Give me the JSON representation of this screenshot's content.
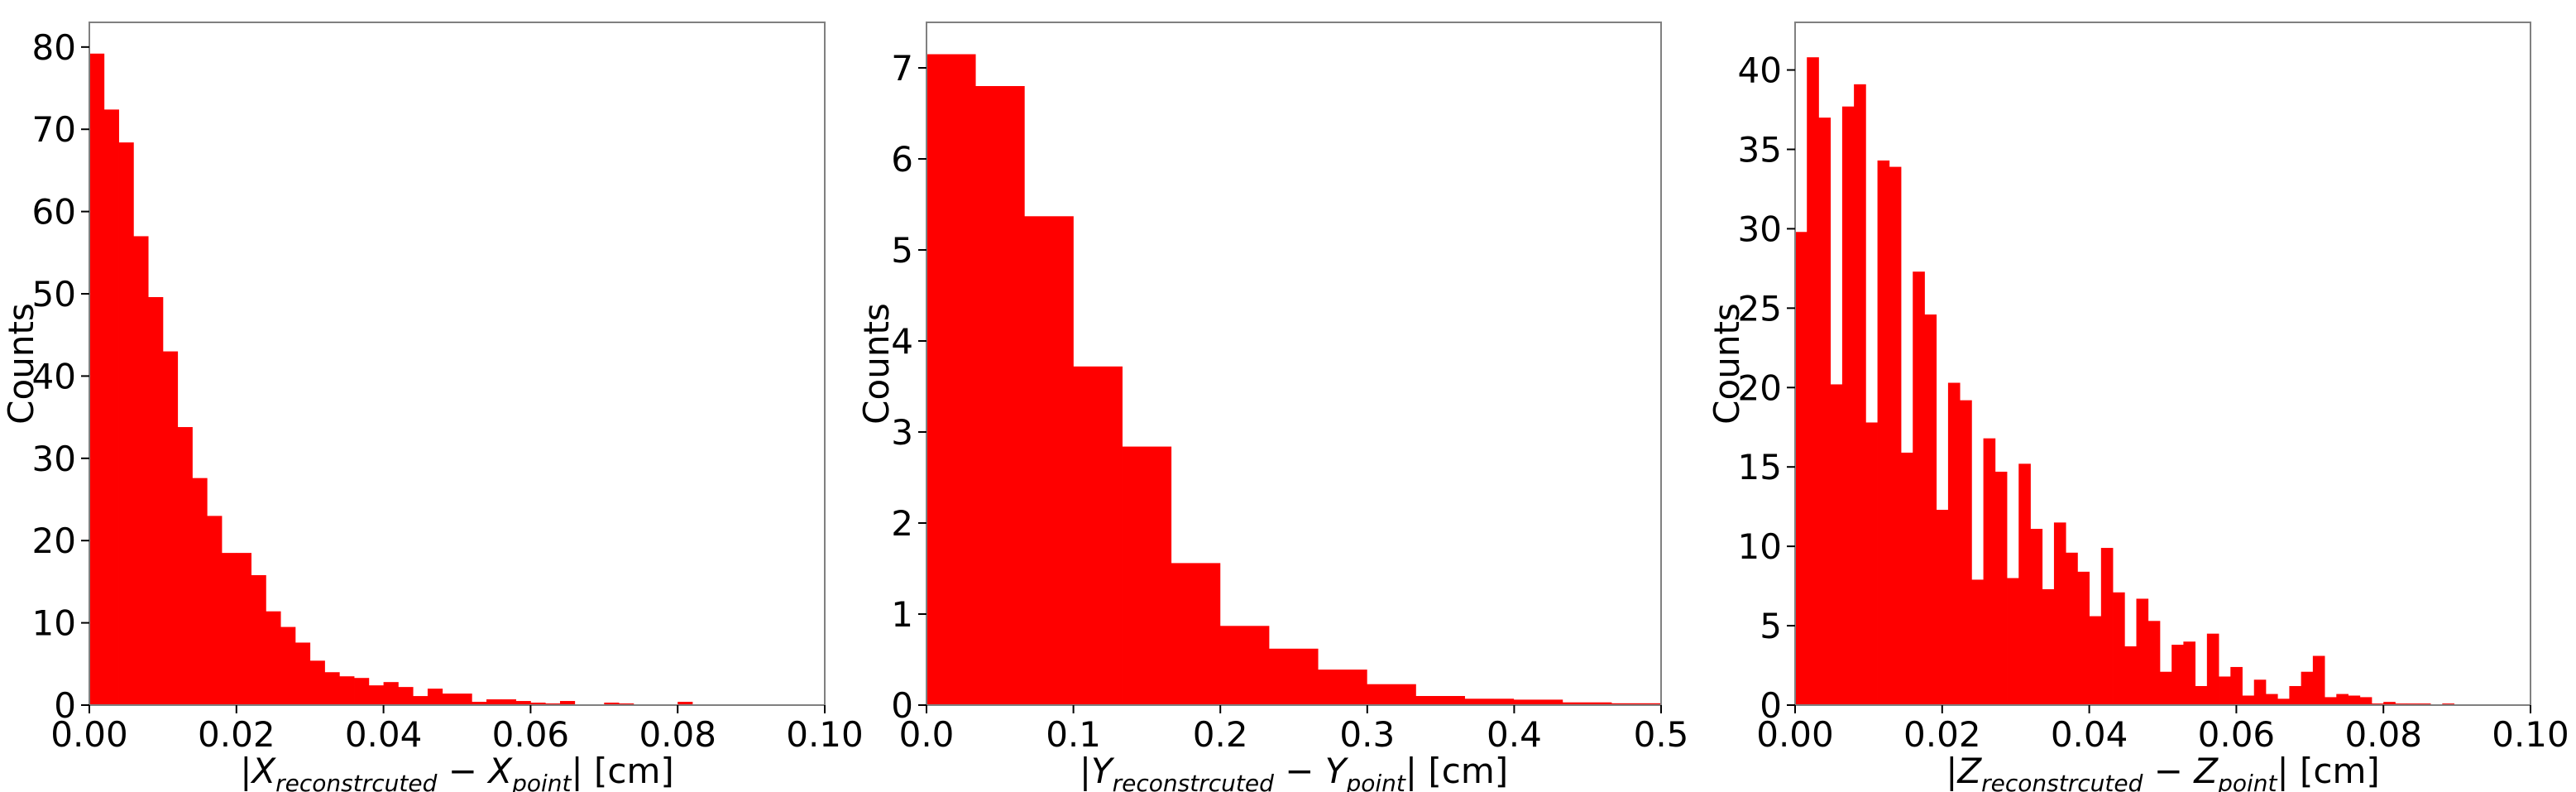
{
  "figure": {
    "bar_color": "#ff0000",
    "axes_color": "#000000",
    "spine_color": "#808080"
  },
  "chart_data": [
    {
      "type": "bar",
      "title": "",
      "ylabel": "Counts",
      "xlabel": {
        "prefix": "|",
        "var1": "X",
        "sub1": "reconstrcuted",
        "minus": " − ",
        "var2": "X",
        "sub2": "point",
        "suffix": "| [cm]"
      },
      "xlim": [
        0,
        0.1
      ],
      "ylim": [
        0,
        83
      ],
      "xticks": [
        "0.00",
        "0.02",
        "0.04",
        "0.06",
        "0.08",
        "0.10"
      ],
      "xtick_values": [
        0,
        0.02,
        0.04,
        0.06,
        0.08,
        0.1
      ],
      "yticks": [
        "0",
        "10",
        "20",
        "30",
        "40",
        "50",
        "60",
        "70",
        "80"
      ],
      "ytick_values": [
        0,
        10,
        20,
        30,
        40,
        50,
        60,
        70,
        80
      ],
      "bin_start": 0,
      "bin_width": 0.002,
      "values": [
        79.2,
        72.4,
        68.4,
        57.0,
        49.6,
        43.0,
        33.8,
        27.6,
        23.0,
        18.5,
        18.5,
        15.8,
        11.4,
        9.5,
        7.6,
        5.4,
        4.0,
        3.5,
        3.3,
        2.4,
        2.8,
        2.2,
        1.1,
        2.0,
        1.4,
        1.4,
        0.4,
        0.7,
        0.7,
        0.5,
        0.3,
        0.2,
        0.5,
        0.1,
        0.1,
        0.3,
        0.2,
        0.1,
        0,
        0,
        0.4,
        0.1,
        0.1,
        0.1,
        0.1,
        0,
        0,
        0.1,
        0,
        0
      ]
    },
    {
      "type": "bar",
      "title": "",
      "ylabel": "Counts",
      "xlabel": {
        "prefix": "|",
        "var1": "Y",
        "sub1": "reconstrcuted",
        "minus": " − ",
        "var2": "Y",
        "sub2": "point",
        "suffix": "| [cm]"
      },
      "xlim": [
        0,
        0.5
      ],
      "ylim": [
        0,
        7.5
      ],
      "xticks": [
        "0.0",
        "0.1",
        "0.2",
        "0.3",
        "0.4",
        "0.5"
      ],
      "xtick_values": [
        0,
        0.1,
        0.2,
        0.3,
        0.4,
        0.5
      ],
      "yticks": [
        "0",
        "1",
        "2",
        "3",
        "4",
        "5",
        "6",
        "7"
      ],
      "ytick_values": [
        0,
        1,
        2,
        3,
        4,
        5,
        6,
        7
      ],
      "bin_start": 0,
      "bin_width": 0.0333,
      "values": [
        7.15,
        6.8,
        5.37,
        3.72,
        2.84,
        1.56,
        0.87,
        0.62,
        0.39,
        0.23,
        0.1,
        0.07,
        0.06,
        0.03,
        0.02
      ]
    },
    {
      "type": "bar",
      "title": "",
      "ylabel": "Counts",
      "xlabel": {
        "prefix": "|",
        "var1": "Z",
        "sub1": "reconstrcuted",
        "minus": " − ",
        "var2": "Z",
        "sub2": "point",
        "suffix": "| [cm]"
      },
      "xlim": [
        0,
        0.1
      ],
      "ylim": [
        0,
        43
      ],
      "xticks": [
        "0.00",
        "0.02",
        "0.04",
        "0.06",
        "0.08",
        "0.10"
      ],
      "xtick_values": [
        0,
        0.02,
        0.04,
        0.06,
        0.08,
        0.1
      ],
      "yticks": [
        "0",
        "5",
        "10",
        "15",
        "20",
        "25",
        "30",
        "35",
        "40"
      ],
      "ytick_values": [
        0,
        5,
        10,
        15,
        20,
        25,
        30,
        35,
        40
      ],
      "bin_start": 0,
      "bin_width": 0.0016,
      "values": [
        29.8,
        40.8,
        37.0,
        20.2,
        37.7,
        39.1,
        17.8,
        34.3,
        33.9,
        15.9,
        27.3,
        24.6,
        12.3,
        20.3,
        19.2,
        7.9,
        16.8,
        14.7,
        8.0,
        15.2,
        11.1,
        7.3,
        11.5,
        9.6,
        8.4,
        5.6,
        9.9,
        7.1,
        3.7,
        6.7,
        5.3,
        2.1,
        3.8,
        4.0,
        1.2,
        4.5,
        1.8,
        2.4,
        0.6,
        1.6,
        0.7,
        0.4,
        1.2,
        2.1,
        3.1,
        0.5,
        0.7,
        0.6,
        0.5,
        0.1,
        0.2,
        0.1,
        0.1,
        0.1,
        0,
        0.1,
        0,
        0,
        0,
        0,
        0,
        0,
        0
      ]
    }
  ]
}
